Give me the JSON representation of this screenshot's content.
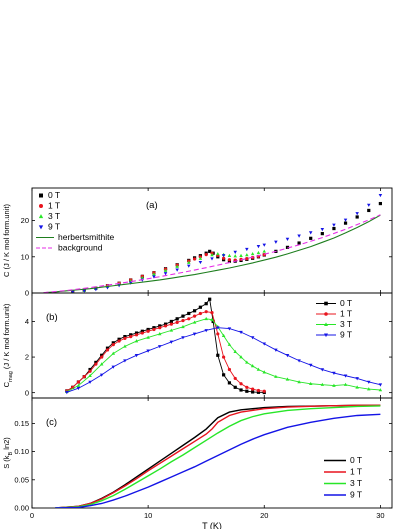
{
  "chart_data": [
    {
      "panel_label": "(a)",
      "type": "scatter",
      "ylabel": "C (J / K mol form.unit)",
      "xlim": [
        0,
        31
      ],
      "ylim": [
        0,
        29
      ],
      "yticks": [
        0,
        10,
        20
      ],
      "series": [
        {
          "name": "0 T",
          "color": "#000000",
          "marker": "square",
          "x": [
            3.5,
            4.5,
            5.5,
            6.5,
            7.5,
            8.5,
            9.5,
            10.5,
            11.5,
            12.5,
            13.5,
            14,
            14.5,
            15,
            15.3,
            15.6,
            16,
            16.5,
            17,
            17.5,
            18,
            18.5,
            19,
            19.5,
            20,
            21,
            22,
            23,
            24,
            25,
            26,
            27,
            28,
            29,
            30
          ],
          "y": [
            0.4,
            0.8,
            1.3,
            2.0,
            2.7,
            3.6,
            4.6,
            5.6,
            6.7,
            7.8,
            9.0,
            9.7,
            10.3,
            11.0,
            11.5,
            11.0,
            10.0,
            9.2,
            8.8,
            8.8,
            9.0,
            9.3,
            9.6,
            10.0,
            10.5,
            11.5,
            12.6,
            13.8,
            15.1,
            16.4,
            17.8,
            19.3,
            21.0,
            22.8,
            24.7
          ]
        },
        {
          "name": "1 T",
          "color": "#e8141e",
          "marker": "circle",
          "x": [
            3.5,
            4.5,
            5.5,
            6.5,
            7.5,
            8.5,
            9.5,
            10.5,
            11.5,
            12.5,
            13.5,
            14,
            14.5,
            15,
            15.5,
            16,
            16.5,
            17,
            17.5,
            18,
            18.5,
            19,
            19.5,
            20
          ],
          "y": [
            0.4,
            0.8,
            1.3,
            2.0,
            2.7,
            3.6,
            4.6,
            5.6,
            6.6,
            7.7,
            8.8,
            9.4,
            10.0,
            10.6,
            11.0,
            10.4,
            9.6,
            9.2,
            9.1,
            9.3,
            9.5,
            9.8,
            10.1,
            10.6
          ]
        },
        {
          "name": "3 T",
          "color": "#28e628",
          "marker": "triangle-up",
          "x": [
            3.5,
            4.5,
            5.5,
            6.5,
            7.5,
            8.5,
            9.5,
            10.5,
            11.5,
            12.5,
            13.5,
            14.5,
            15.5,
            16,
            16.5,
            17,
            17.5,
            18,
            18.5,
            19,
            19.5,
            20
          ],
          "y": [
            0.3,
            0.7,
            1.2,
            1.8,
            2.5,
            3.3,
            4.2,
            5.2,
            6.2,
            7.3,
            8.4,
            9.5,
            10.5,
            10.8,
            10.6,
            10.3,
            10.2,
            10.3,
            10.5,
            10.8,
            11.1,
            11.5
          ]
        },
        {
          "name": "9 T",
          "color": "#1414e6",
          "marker": "triangle-down",
          "x": [
            3.5,
            4.5,
            5.5,
            6.5,
            7.5,
            8.5,
            9.5,
            10.5,
            11.5,
            12.5,
            13.5,
            14.5,
            15.5,
            16.5,
            17.5,
            18.5,
            19.5,
            20,
            21,
            22,
            23,
            24,
            25,
            26,
            27,
            28,
            29,
            30
          ],
          "y": [
            0.3,
            0.6,
            1.0,
            1.5,
            2.1,
            2.8,
            3.6,
            4.5,
            5.4,
            6.4,
            7.5,
            8.5,
            9.5,
            10.4,
            11.3,
            12.1,
            12.9,
            13.3,
            14.1,
            14.9,
            15.8,
            16.7,
            17.6,
            18.8,
            20.2,
            22.0,
            24.3,
            27.0
          ]
        },
        {
          "name": "herbertsmithite",
          "color": "#1e7e1e",
          "marker": "none",
          "x": [
            1,
            2,
            3,
            4,
            5,
            6,
            7,
            8,
            9,
            10,
            11,
            12,
            13,
            14,
            15,
            16,
            17,
            18,
            19,
            20,
            21,
            22,
            23,
            24,
            25,
            26,
            27,
            28,
            29,
            30
          ],
          "y": [
            0.1,
            0.3,
            0.6,
            0.9,
            1.2,
            1.6,
            2.0,
            2.4,
            2.8,
            3.2,
            3.6,
            4.1,
            4.6,
            5.1,
            5.7,
            6.3,
            6.9,
            7.6,
            8.3,
            9.1,
            9.9,
            10.8,
            11.8,
            12.8,
            14.0,
            15.2,
            16.6,
            18.1,
            19.7,
            21.5
          ]
        },
        {
          "name": "background",
          "color": "#e62ee6",
          "marker": "none",
          "dash": true,
          "x": [
            1,
            3,
            5,
            7,
            9,
            11,
            13,
            15,
            17,
            19,
            21,
            23,
            25,
            27,
            29,
            30
          ],
          "y": [
            0.1,
            0.7,
            1.5,
            2.4,
            3.4,
            4.5,
            5.7,
            7.0,
            8.4,
            9.9,
            11.5,
            13.3,
            15.3,
            17.6,
            20.2,
            21.6
          ]
        }
      ]
    },
    {
      "panel_label": "(b)",
      "type": "line",
      "ylabel": "C_mag (J / K mol form.unit)",
      "xlim": [
        0,
        31
      ],
      "ylim": [
        -0.3,
        5.6
      ],
      "yticks": [
        0,
        2,
        4
      ],
      "series": [
        {
          "name": "0 T",
          "color": "#000000",
          "marker": "square",
          "x": [
            3,
            3.5,
            4,
            4.5,
            5,
            5.5,
            6,
            6.5,
            7,
            7.5,
            8,
            8.5,
            9,
            9.5,
            10,
            10.5,
            11,
            11.5,
            12,
            12.5,
            13,
            13.5,
            14,
            14.5,
            15,
            15.3,
            15.6,
            16,
            16.5,
            17,
            17.5,
            18,
            18.5,
            19,
            19.5,
            20
          ],
          "y": [
            0.1,
            0.3,
            0.6,
            0.9,
            1.3,
            1.7,
            2.1,
            2.5,
            2.8,
            3.0,
            3.15,
            3.25,
            3.35,
            3.45,
            3.55,
            3.65,
            3.75,
            3.85,
            4.0,
            4.15,
            4.3,
            4.45,
            4.6,
            4.8,
            5.0,
            5.25,
            4.0,
            2.1,
            1.0,
            0.55,
            0.3,
            0.15,
            0.08,
            0.04,
            0.02,
            0.01
          ]
        },
        {
          "name": "1 T",
          "color": "#e8141e",
          "marker": "circle",
          "x": [
            3,
            3.5,
            4,
            4.5,
            5,
            5.5,
            6,
            6.5,
            7,
            7.5,
            8,
            8.5,
            9,
            9.5,
            10,
            10.5,
            11,
            11.5,
            12,
            12.5,
            13,
            13.5,
            14,
            14.5,
            15,
            15.5,
            16,
            16.5,
            17,
            17.5,
            18,
            18.5,
            19,
            19.5,
            20
          ],
          "y": [
            0.1,
            0.3,
            0.6,
            0.9,
            1.2,
            1.6,
            2.0,
            2.4,
            2.7,
            2.9,
            3.05,
            3.15,
            3.25,
            3.35,
            3.45,
            3.55,
            3.65,
            3.75,
            3.85,
            3.95,
            4.05,
            4.15,
            4.3,
            4.45,
            4.55,
            4.5,
            3.3,
            2.0,
            1.3,
            0.8,
            0.5,
            0.3,
            0.2,
            0.12,
            0.08
          ]
        },
        {
          "name": "3 T",
          "color": "#28e628",
          "marker": "triangle-up",
          "x": [
            3,
            4,
            5,
            6,
            7,
            8,
            9,
            10,
            11,
            12,
            13,
            14,
            15,
            15.5,
            16,
            16.5,
            17,
            17.5,
            18,
            18.5,
            19,
            19.5,
            20,
            21,
            22,
            23,
            24,
            25,
            26,
            27,
            28,
            29,
            30
          ],
          "y": [
            0.05,
            0.4,
            0.95,
            1.6,
            2.2,
            2.6,
            2.9,
            3.1,
            3.3,
            3.5,
            3.7,
            3.95,
            4.15,
            4.1,
            3.7,
            3.2,
            2.7,
            2.3,
            2.0,
            1.7,
            1.5,
            1.3,
            1.15,
            0.9,
            0.75,
            0.6,
            0.5,
            0.45,
            0.4,
            0.45,
            0.3,
            0.2,
            0.15
          ]
        },
        {
          "name": "9 T",
          "color": "#1414e6",
          "marker": "triangle-down",
          "x": [
            3,
            4,
            5,
            6,
            7,
            8,
            9,
            10,
            11,
            12,
            13,
            14,
            15,
            16,
            17,
            18,
            19,
            20,
            21,
            22,
            23,
            24,
            25,
            26,
            27,
            28,
            29,
            30
          ],
          "y": [
            0.02,
            0.25,
            0.6,
            1.0,
            1.45,
            1.8,
            2.1,
            2.35,
            2.6,
            2.85,
            3.1,
            3.3,
            3.5,
            3.65,
            3.6,
            3.4,
            3.1,
            2.75,
            2.4,
            2.1,
            1.8,
            1.55,
            1.3,
            1.1,
            0.95,
            0.8,
            0.6,
            0.45
          ]
        }
      ]
    },
    {
      "panel_label": "(c)",
      "type": "line",
      "ylabel": "S (k_B ln2)",
      "xlabel": "T (K)",
      "xlim": [
        0,
        31
      ],
      "ylim": [
        0,
        0.195
      ],
      "yticks": [
        0.0,
        0.05,
        0.1,
        0.15
      ],
      "xticks": [
        0,
        10,
        20,
        30
      ],
      "series": [
        {
          "name": "0 T",
          "color": "#000000",
          "x": [
            2,
            4,
            5,
            6,
            7,
            8,
            9,
            10,
            11,
            12,
            13,
            14,
            15,
            15.5,
            16,
            17,
            18,
            20,
            22,
            25,
            28,
            30
          ],
          "y": [
            0,
            0.003,
            0.008,
            0.017,
            0.028,
            0.041,
            0.055,
            0.069,
            0.083,
            0.097,
            0.111,
            0.125,
            0.14,
            0.15,
            0.16,
            0.17,
            0.174,
            0.178,
            0.18,
            0.181,
            0.182,
            0.182
          ]
        },
        {
          "name": "1 T",
          "color": "#e8141e",
          "x": [
            2,
            4,
            5,
            6,
            7,
            8,
            9,
            10,
            11,
            12,
            13,
            14,
            15,
            15.5,
            16,
            17,
            18,
            20,
            22,
            25,
            28,
            30
          ],
          "y": [
            0,
            0.003,
            0.008,
            0.016,
            0.027,
            0.039,
            0.052,
            0.066,
            0.079,
            0.092,
            0.105,
            0.118,
            0.131,
            0.14,
            0.152,
            0.164,
            0.17,
            0.176,
            0.179,
            0.181,
            0.182,
            0.182
          ]
        },
        {
          "name": "3 T",
          "color": "#28e628",
          "x": [
            2,
            4,
            5,
            6,
            7,
            8,
            9,
            10,
            11,
            12,
            13,
            14,
            15,
            16,
            17,
            18,
            19,
            20,
            22,
            24,
            26,
            28,
            30
          ],
          "y": [
            0,
            0.002,
            0.006,
            0.013,
            0.022,
            0.033,
            0.045,
            0.057,
            0.069,
            0.082,
            0.094,
            0.107,
            0.12,
            0.133,
            0.145,
            0.155,
            0.162,
            0.167,
            0.173,
            0.176,
            0.178,
            0.18,
            0.181
          ]
        },
        {
          "name": "9 T",
          "color": "#1414e6",
          "x": [
            2,
            4,
            5,
            6,
            7,
            8,
            9,
            10,
            11,
            12,
            13,
            14,
            15,
            16,
            17,
            18,
            19,
            20,
            22,
            24,
            26,
            28,
            30
          ],
          "y": [
            0,
            0.001,
            0.004,
            0.008,
            0.014,
            0.021,
            0.029,
            0.037,
            0.046,
            0.055,
            0.064,
            0.073,
            0.083,
            0.093,
            0.103,
            0.113,
            0.122,
            0.13,
            0.143,
            0.152,
            0.159,
            0.164,
            0.166
          ]
        }
      ]
    }
  ]
}
